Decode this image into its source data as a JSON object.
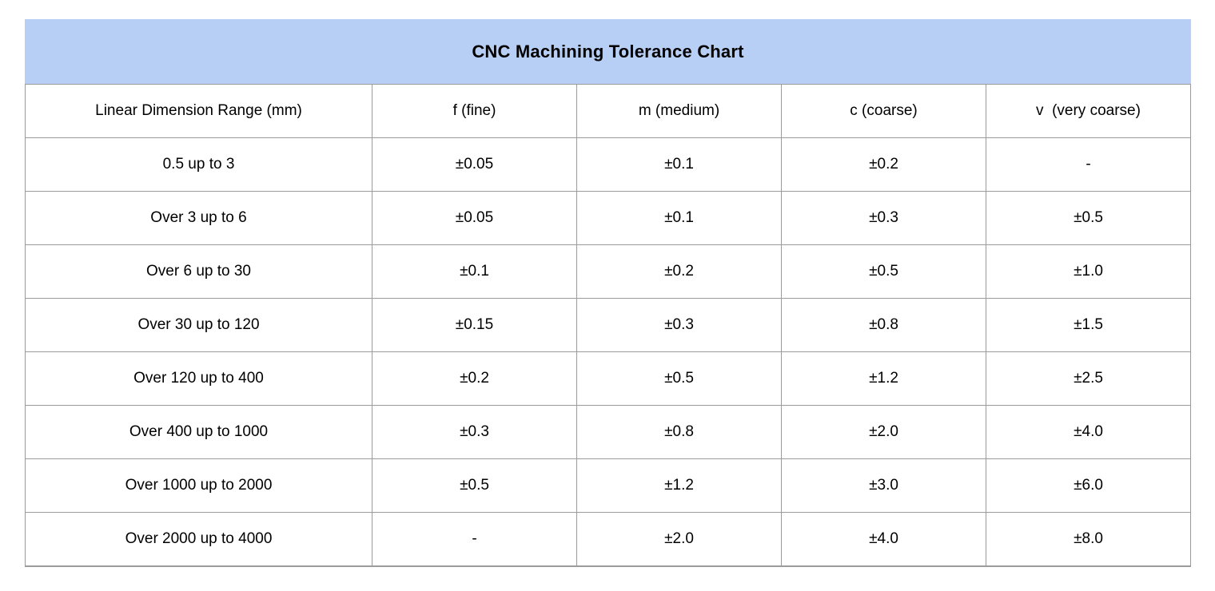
{
  "title": "CNC Machining Tolerance Chart",
  "colors": {
    "banner_bg": "#b8cff5",
    "border": "#9b9b9b",
    "text": "#000000",
    "page_bg": "#ffffff"
  },
  "chart_data": {
    "type": "table",
    "title": "CNC Machining Tolerance Chart",
    "columns": [
      "Linear Dimension Range (mm)",
      "f (fine)",
      "m (medium)",
      "c (coarse)",
      "v  (very coarse)"
    ],
    "rows": [
      [
        "0.5 up to 3",
        "±0.05",
        "±0.1",
        "±0.2",
        "-"
      ],
      [
        "Over 3 up to 6",
        "±0.05",
        "±0.1",
        "±0.3",
        "±0.5"
      ],
      [
        "Over 6 up to 30",
        "±0.1",
        "±0.2",
        "±0.5",
        "±1.0"
      ],
      [
        "Over 30 up to 120",
        "±0.15",
        "±0.3",
        "±0.8",
        "±1.5"
      ],
      [
        "Over 120 up to 400",
        "±0.2",
        "±0.5",
        "±1.2",
        "±2.5"
      ],
      [
        "Over 400 up to 1000",
        "±0.3",
        "±0.8",
        "±2.0",
        "±4.0"
      ],
      [
        "Over 1000 up to 2000",
        "±0.5",
        "±1.2",
        "±3.0",
        "±6.0"
      ],
      [
        "Over 2000 up to 4000",
        "-",
        "±2.0",
        "±4.0",
        "±8.0"
      ]
    ],
    "layout": {
      "grid": true,
      "header_row": true,
      "title_position": "top-banner"
    }
  }
}
